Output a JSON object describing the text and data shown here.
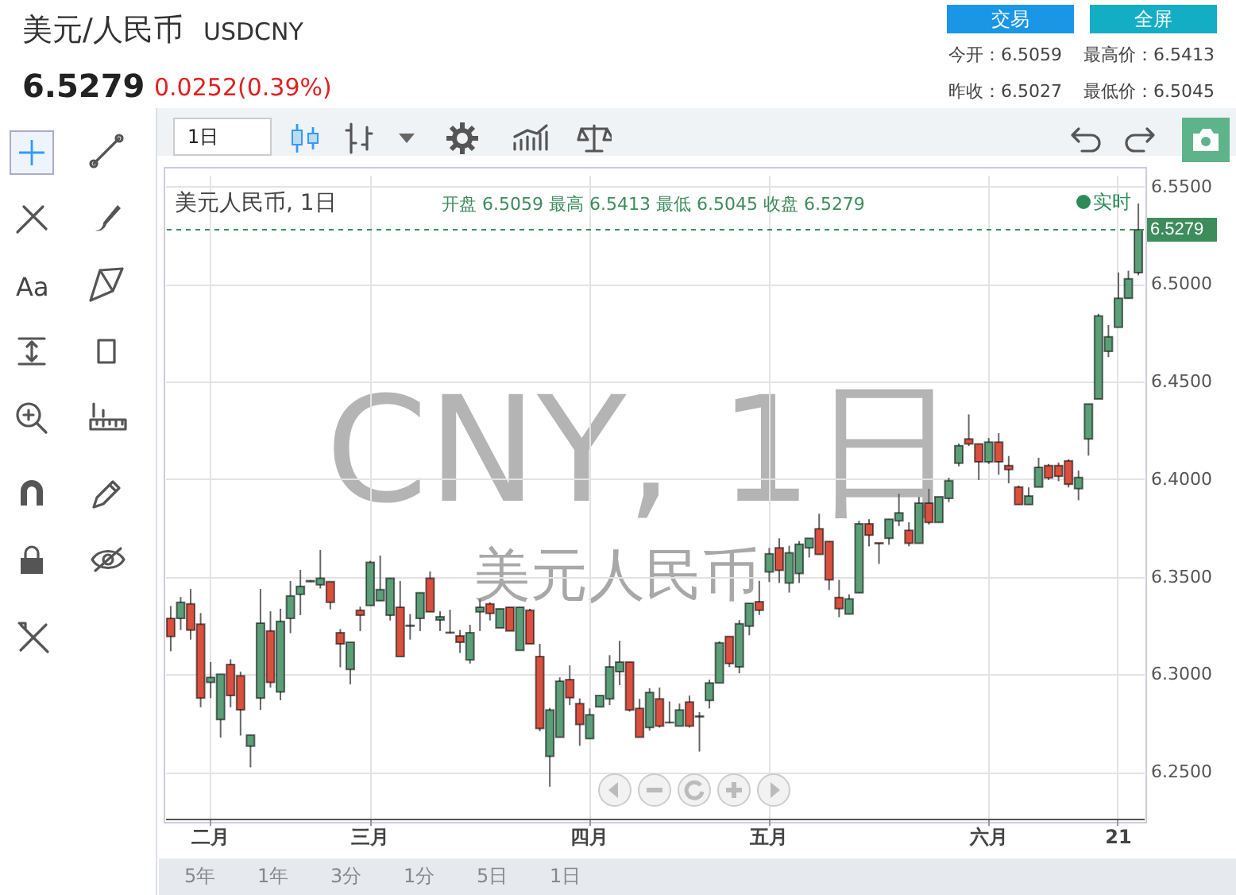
{
  "chart_data": {
    "type": "candlestick",
    "title": "美元/人民币",
    "subtitle": "USDCNY",
    "categories": [
      null,
      null,
      null,
      null,
      "二月",
      null,
      null,
      null,
      null,
      null,
      null,
      null,
      null,
      null,
      null,
      null,
      null,
      null,
      null,
      null,
      "三月",
      null,
      null,
      null,
      null,
      null,
      null,
      null,
      null,
      null,
      null,
      null,
      null,
      null,
      null,
      null,
      null,
      null,
      null,
      null,
      null,
      null,
      "四月",
      null,
      null,
      null,
      null,
      null,
      null,
      null,
      null,
      null,
      null,
      null,
      null,
      null,
      null,
      null,
      null,
      null,
      "五月",
      null,
      null,
      null,
      null,
      null,
      null,
      null,
      null,
      null,
      null,
      null,
      null,
      null,
      null,
      null,
      null,
      null,
      null,
      null,
      null,
      null,
      "六月",
      null,
      null,
      null,
      null,
      null,
      null,
      null,
      null,
      null,
      null,
      null,
      null,
      "21",
      null,
      null
    ],
    "ohlc": [
      [
        6.3287,
        6.335,
        6.3118,
        6.3194
      ],
      [
        6.3287,
        6.3396,
        6.3227,
        6.3369
      ],
      [
        6.3361,
        6.3437,
        6.3178,
        6.3227
      ],
      [
        6.3257,
        6.3314,
        6.2831,
        6.2878
      ],
      [
        6.2959,
        6.3063,
        6.2878,
        6.2984
      ],
      [
        6.2768,
        6.3,
        6.2676,
        6.3
      ],
      [
        6.305,
        6.3077,
        6.2831,
        6.2891
      ],
      [
        6.2992,
        6.3014,
        6.2686,
        6.2818
      ],
      [
        6.2632,
        6.2689,
        6.2523,
        6.2689
      ],
      [
        6.2878,
        6.3437,
        6.2818,
        6.3262
      ],
      [
        6.3222,
        6.3323,
        6.2932,
        6.2959
      ],
      [
        6.291,
        6.3336,
        6.2867,
        6.3271
      ],
      [
        6.3287,
        6.3478,
        6.3211,
        6.3402
      ],
      [
        6.341,
        6.3535,
        6.3303,
        6.3451
      ],
      [
        6.3475,
        6.3482,
        6.3473,
        6.348
      ],
      [
        6.3459,
        6.3637,
        6.344,
        6.3492
      ],
      [
        6.3475,
        6.3475,
        6.3333,
        6.3369
      ],
      [
        6.3213,
        6.3232,
        6.3036,
        6.3156
      ],
      [
        6.3025,
        6.3164,
        6.2949,
        6.3164
      ],
      [
        6.3328,
        6.3347,
        6.3222,
        6.3303
      ],
      [
        6.3353,
        6.3582,
        6.3353,
        6.3574
      ],
      [
        6.3377,
        6.3609,
        6.3377,
        6.3434
      ],
      [
        6.3303,
        6.3492,
        6.3276,
        6.3492
      ],
      [
        6.3344,
        6.3478,
        6.3091,
        6.3091
      ],
      [
        6.3247,
        6.3309,
        6.3178,
        6.3251
      ],
      [
        6.3287,
        6.3418,
        6.3222,
        6.3418
      ],
      [
        6.3492,
        6.3527,
        6.332,
        6.332
      ],
      [
        6.3279,
        6.3323,
        6.3222,
        6.3295
      ],
      [
        6.3215,
        6.3331,
        6.321,
        6.3212
      ],
      [
        6.3197,
        6.3227,
        6.311,
        6.3164
      ],
      [
        6.3074,
        6.3254,
        6.3055,
        6.3213
      ],
      [
        6.332,
        6.3385,
        6.3222,
        6.3344
      ],
      [
        6.3361,
        6.3369,
        6.3276,
        6.3312
      ],
      [
        6.3238,
        6.3336,
        6.3238,
        6.3336
      ],
      [
        6.3344,
        6.3344,
        6.3222,
        6.3222
      ],
      [
        6.3123,
        6.3344,
        6.3123,
        6.3344
      ],
      [
        6.3328,
        6.3336,
        6.3156,
        6.3156
      ],
      [
        6.3091,
        6.3156,
        6.2708,
        6.2722
      ],
      [
        6.258,
        6.2828,
        6.2424,
        6.2817
      ],
      [
        6.2678,
        6.2984,
        6.2678,
        6.2965
      ],
      [
        6.2973,
        6.3046,
        6.2842,
        6.288
      ],
      [
        6.285,
        6.2877,
        6.2634,
        6.2743
      ],
      [
        6.267,
        6.2825,
        6.267,
        6.2793
      ],
      [
        6.2833,
        6.2891,
        6.2833,
        6.2891
      ],
      [
        6.2874,
        6.3098,
        6.2842,
        6.3038
      ],
      [
        6.3014,
        6.3172,
        6.2945,
        6.3063
      ],
      [
        6.3063,
        6.3063,
        6.2809,
        6.2817
      ],
      [
        6.2825,
        6.2874,
        6.2678,
        6.2678
      ],
      [
        6.2727,
        6.2929,
        6.2711,
        6.2907
      ],
      [
        6.2874,
        6.2932,
        6.2727,
        6.2735
      ],
      [
        6.2754,
        6.2861,
        6.275,
        6.2752
      ],
      [
        6.2735,
        6.285,
        6.2735,
        6.2817
      ],
      [
        6.2858,
        6.2891,
        6.2727,
        6.2735
      ],
      [
        6.2782,
        6.2806,
        6.2604,
        6.2786
      ],
      [
        6.2866,
        6.2973,
        6.2825,
        6.2956
      ],
      [
        6.2956,
        6.3169,
        6.2956,
        6.3161
      ],
      [
        6.3194,
        6.3194,
        6.3038,
        6.3055
      ],
      [
        6.3038,
        6.3278,
        6.3005,
        6.3259
      ],
      [
        6.3247,
        6.3364,
        6.32,
        6.3364
      ],
      [
        6.3372,
        6.3479,
        6.3304,
        6.3328
      ],
      [
        6.3525,
        6.3648,
        6.3473,
        6.3618
      ],
      [
        6.3648,
        6.3697,
        6.3468,
        6.3533
      ],
      [
        6.3468,
        6.3659,
        6.3419,
        6.3623
      ],
      [
        6.3517,
        6.3683,
        6.3468,
        6.3667
      ],
      [
        6.3648,
        6.3697,
        6.3599,
        6.3697
      ],
      [
        6.3746,
        6.3823,
        6.3615,
        6.3615
      ],
      [
        6.3681,
        6.3681,
        6.3432,
        6.3484
      ],
      [
        6.3394,
        6.3484,
        6.3293,
        6.3337
      ],
      [
        6.3309,
        6.341,
        6.3309,
        6.3386
      ],
      [
        6.3418,
        6.3787,
        6.3418,
        6.3771
      ],
      [
        6.3771,
        6.3795,
        6.3656,
        6.3713
      ],
      [
        6.3674,
        6.3674,
        6.3566,
        6.367
      ],
      [
        6.3697,
        6.3795,
        6.3664,
        6.3795
      ],
      [
        6.3787,
        6.3926,
        6.376,
        6.3828
      ],
      [
        6.3738,
        6.3779,
        6.3656,
        6.3672
      ],
      [
        6.3672,
        6.391,
        6.3672,
        6.3877
      ],
      [
        6.3877,
        6.3951,
        6.3768,
        6.3779
      ],
      [
        6.3779,
        6.391,
        6.3779,
        6.391
      ],
      [
        6.3902,
        6.4008,
        6.3883,
        6.3992
      ],
      [
        6.4082,
        6.4183,
        6.4066,
        6.4172
      ],
      [
        6.4206,
        6.4332,
        6.417,
        6.4181
      ],
      [
        6.4181,
        6.4181,
        6.3996,
        6.4089
      ],
      [
        6.4089,
        6.4211,
        6.4078,
        6.419
      ],
      [
        6.419,
        6.4236,
        6.4023,
        6.4089
      ],
      [
        6.407,
        6.4119,
        6.3979,
        6.405
      ],
      [
        6.396,
        6.3968,
        6.387,
        6.387
      ],
      [
        6.387,
        6.3958,
        6.387,
        6.3914
      ],
      [
        6.396,
        6.411,
        6.396,
        6.4061
      ],
      [
        6.407,
        6.4078,
        6.3996,
        6.4007
      ],
      [
        6.407,
        6.4086,
        6.399,
        6.4015
      ],
      [
        6.4094,
        6.4102,
        6.3958,
        6.3974
      ],
      [
        6.3952,
        6.4045,
        6.3892,
        6.4009
      ],
      [
        6.4206,
        6.4386,
        6.4121,
        6.4386
      ],
      [
        6.4411,
        6.4848,
        6.4411,
        6.4837
      ],
      [
        6.4656,
        6.479,
        6.4626,
        6.473
      ],
      [
        6.4779,
        6.506,
        6.4779,
        6.4927
      ],
      [
        6.4927,
        6.5069,
        6.4927,
        6.5027
      ],
      [
        6.5059,
        6.5413,
        6.5045,
        6.5279
      ]
    ],
    "colors": [
      "#d9503f",
      "#5b9e78",
      "#d9503f",
      "#d9503f",
      "#5b9e78",
      "#5b9e78",
      "#d9503f",
      "#d9503f",
      "#5b9e78",
      "#5b9e78",
      "#d9503f",
      "#5b9e78",
      "#5b9e78",
      "#5b9e78",
      "#5b9e78",
      "#5b9e78",
      "#d9503f",
      "#d9503f",
      "#5b9e78",
      "#d9503f",
      "#5b9e78",
      "#5b9e78",
      "#5b9e78",
      "#d9503f",
      "#5b9e78",
      "#5b9e78",
      "#d9503f",
      "#5b9e78",
      "#d9503f",
      "#d9503f",
      "#5b9e78",
      "#5b9e78",
      "#d9503f",
      "#5b9e78",
      "#d9503f",
      "#5b9e78",
      "#d9503f",
      "#d9503f",
      "#5b9e78",
      "#5b9e78",
      "#d9503f",
      "#d9503f",
      "#5b9e78",
      "#5b9e78",
      "#5b9e78",
      "#5b9e78",
      "#d9503f",
      "#d9503f",
      "#5b9e78",
      "#d9503f",
      "#d9503f",
      "#5b9e78",
      "#d9503f",
      "#5b9e78",
      "#5b9e78",
      "#5b9e78",
      "#d9503f",
      "#5b9e78",
      "#5b9e78",
      "#d9503f",
      "#5b9e78",
      "#d9503f",
      "#5b9e78",
      "#5b9e78",
      "#5b9e78",
      "#d9503f",
      "#d9503f",
      "#d9503f",
      "#5b9e78",
      "#5b9e78",
      "#d9503f",
      "#d9503f",
      "#5b9e78",
      "#5b9e78",
      "#d9503f",
      "#5b9e78",
      "#d9503f",
      "#5b9e78",
      "#5b9e78",
      "#5b9e78",
      "#d9503f",
      "#d9503f",
      "#5b9e78",
      "#d9503f",
      "#d9503f",
      "#d9503f",
      "#5b9e78",
      "#5b9e78",
      "#d9503f",
      "#d9503f",
      "#d9503f",
      "#5b9e78",
      "#5b9e78",
      "#5b9e78",
      "#5b9e78",
      "#5b9e78",
      "#5b9e78",
      "#5b9e78"
    ],
    "ylim": [
      6.226,
      6.556
    ],
    "yticks": [
      {
        "value": 6.25,
        "label": "6.2500"
      },
      {
        "value": 6.3,
        "label": "6.3000"
      },
      {
        "value": 6.35,
        "label": "6.3500"
      },
      {
        "value": 6.4,
        "label": "6.4000"
      },
      {
        "value": 6.45,
        "label": "6.4500"
      },
      {
        "value": 6.5,
        "label": "6.5000"
      },
      {
        "value": 6.55,
        "label": "6.5500"
      }
    ],
    "grid": true,
    "ref_lines": [
      {
        "axis": "y",
        "value": 6.5279,
        "label": "6.5279",
        "color": "#3d8c5c",
        "line_style": "dashed"
      }
    ],
    "annotations": [
      "6.5279",
      "0.0252(0.39%)",
      "今开：6.5059",
      "最高价：6.5413",
      "昨收：6.5027",
      "最低价：6.5045",
      "美元人民币, 1日",
      "开盘 6.5059 最高 6.5413 最低 6.5045 收盘 6.5279",
      "实时",
      "CNY, 1日",
      "美元人民币",
      "交易",
      "全屏",
      "1日",
      "Aa",
      "5年",
      "1年",
      "3分",
      "1分",
      "5日",
      "1日"
    ]
  }
}
